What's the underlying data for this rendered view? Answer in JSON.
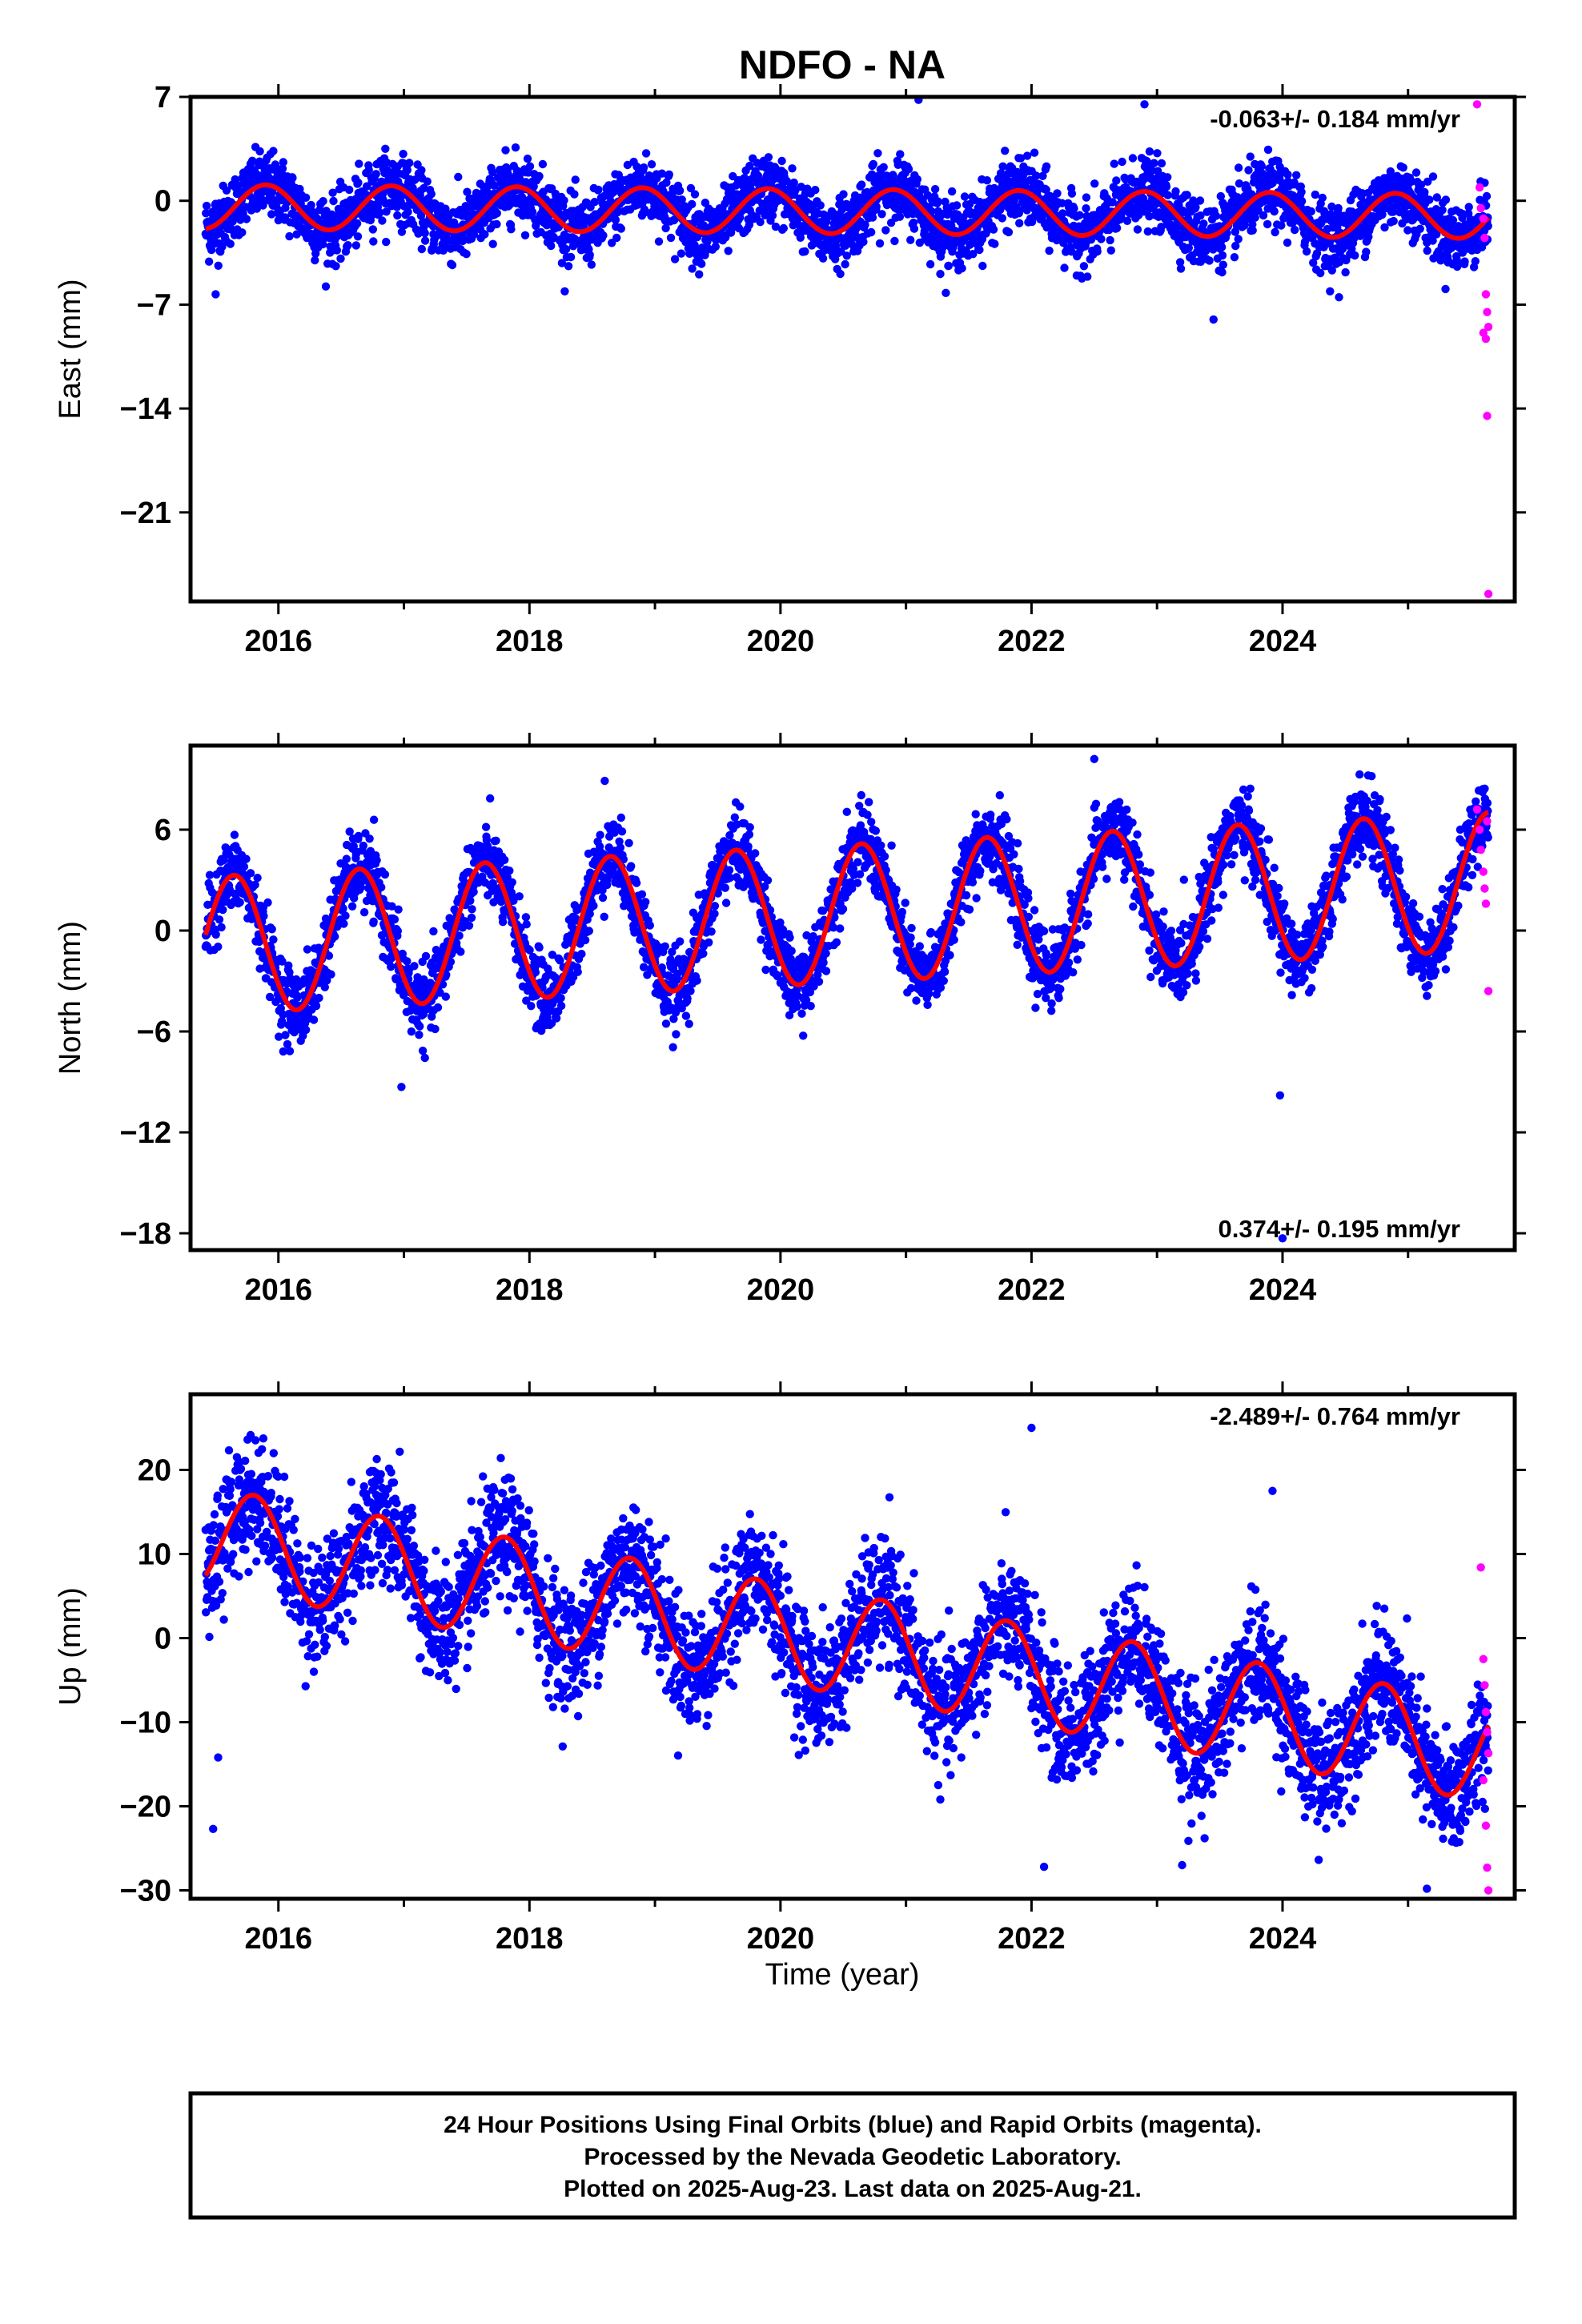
{
  "title": "NDFO - NA",
  "xlabel": "Time (year)",
  "footer": {
    "line1": "24 Hour Positions Using Final Orbits (blue) and Rapid Orbits (magenta).",
    "line2": "Processed by the Nevada Geodetic Laboratory.",
    "line3": "Plotted on 2025-Aug-23. Last data on 2025-Aug-21."
  },
  "colors": {
    "final_orbits": "#0000ff",
    "rapid_orbits": "#ff00ff",
    "model_fit": "#ff0000"
  },
  "chart_data": [
    {
      "type": "scatter",
      "component": "east",
      "ylabel": "East (mm)",
      "rate_label": "-0.063+/- 0.184 mm/yr",
      "rate_position": "top-right",
      "xlim": [
        2015.3,
        2025.85
      ],
      "ylim": [
        -27,
        7
      ],
      "xticks": [
        2016,
        2018,
        2020,
        2022,
        2024
      ],
      "yticks": [
        7,
        0,
        -7,
        -14,
        -21
      ],
      "time_range": [
        2015.42,
        2025.64
      ],
      "seasonal_fit": {
        "offset": -0.4,
        "trend": -0.063,
        "amplitude": 1.5,
        "amplitude_growth": 0,
        "phase": 0.0
      },
      "scatter_sd": 1.1,
      "rapid_orbits": [
        [
          2025.55,
          6.5
        ],
        [
          2025.57,
          0.9
        ],
        [
          2025.58,
          -0.5
        ],
        [
          2025.6,
          -1.2
        ],
        [
          2025.61,
          -2.5
        ],
        [
          2025.62,
          -6.3
        ],
        [
          2025.63,
          -7.5
        ],
        [
          2025.64,
          -8.5
        ],
        [
          2025.6,
          -8.9
        ],
        [
          2025.62,
          -9.3
        ],
        [
          2025.63,
          -14.5
        ],
        [
          2025.64,
          -26.5
        ]
      ],
      "outliers": [
        [
          2015.5,
          -6.3
        ],
        [
          2021.1,
          6.8
        ],
        [
          2022.9,
          6.5
        ],
        [
          2023.45,
          -8.0
        ],
        [
          2024.45,
          -6.5
        ]
      ]
    },
    {
      "type": "scatter",
      "component": "north",
      "ylabel": "North (mm)",
      "rate_label": "0.374+/- 0.195 mm/yr",
      "rate_position": "bottom-right",
      "xlim": [
        2015.3,
        2025.85
      ],
      "ylim": [
        -19,
        11
      ],
      "xticks": [
        2016,
        2018,
        2020,
        2022,
        2024
      ],
      "yticks": [
        6,
        0,
        -6,
        -12,
        -18
      ],
      "time_range": [
        2015.42,
        2025.64
      ],
      "seasonal_fit": {
        "offset": -0.9,
        "trend": 0.374,
        "amplitude": 4.1,
        "amplitude_growth": 0.0,
        "phase": 1.6
      },
      "scatter_sd": 1.1,
      "rapid_orbits": [
        [
          2025.55,
          7.2
        ],
        [
          2025.57,
          6.0
        ],
        [
          2025.58,
          4.8
        ],
        [
          2025.6,
          3.5
        ],
        [
          2025.61,
          2.5
        ],
        [
          2025.62,
          1.6
        ],
        [
          2025.63,
          6.5
        ],
        [
          2025.64,
          -3.6
        ]
      ],
      "outliers": [
        [
          2016.98,
          -9.3
        ],
        [
          2018.6,
          8.9
        ],
        [
          2022.5,
          10.2
        ],
        [
          2023.98,
          -9.8
        ],
        [
          2024.0,
          -18.3
        ]
      ]
    },
    {
      "type": "scatter",
      "component": "up",
      "ylabel": "Up (mm)",
      "rate_label": "-2.489+/- 0.764 mm/yr",
      "rate_position": "top-right",
      "xlim": [
        2015.3,
        2025.85
      ],
      "ylim": [
        -31,
        29
      ],
      "xticks": [
        2016,
        2018,
        2020,
        2022,
        2024
      ],
      "yticks": [
        20,
        10,
        0,
        -10,
        -20,
        -30
      ],
      "time_range": [
        2015.42,
        2025.64
      ],
      "seasonal_fit": {
        "offset": 12.0,
        "trend": -2.489,
        "amplitude": 6.0,
        "amplitude_growth": 0,
        "phase": 0.6
      },
      "scatter_sd": 3.6,
      "rapid_orbits": [
        [
          2025.58,
          8.4
        ],
        [
          2025.6,
          -2.5
        ],
        [
          2025.61,
          -5.6
        ],
        [
          2025.62,
          -8.8
        ],
        [
          2025.63,
          -11.2
        ],
        [
          2025.64,
          -13.7
        ],
        [
          2025.6,
          -16.9
        ],
        [
          2025.62,
          -22.3
        ],
        [
          2025.63,
          -27.3
        ],
        [
          2025.64,
          -30.0
        ]
      ],
      "outliers": [
        [
          2015.48,
          -22.7
        ],
        [
          2015.52,
          -14.2
        ],
        [
          2022.0,
          25.0
        ],
        [
          2023.92,
          17.5
        ],
        [
          2022.1,
          -27.2
        ],
        [
          2023.2,
          -27.0
        ],
        [
          2025.15,
          -29.8
        ]
      ]
    }
  ]
}
